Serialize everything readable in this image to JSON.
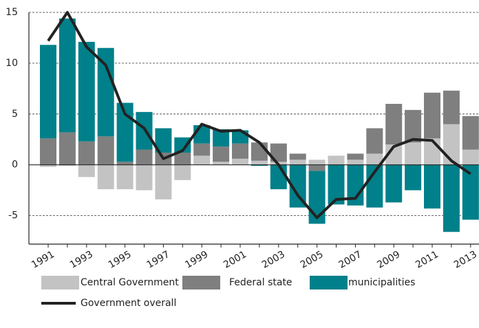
{
  "chart_data": {
    "type": "stacked-bar-line",
    "categories": [
      "1991",
      null,
      "1993",
      null,
      "1995",
      null,
      "1997",
      null,
      "1999",
      null,
      "2001",
      null,
      "2003",
      null,
      "2005",
      null,
      "2007",
      null,
      "2009",
      null,
      "2011",
      null,
      "2013"
    ],
    "series": [
      {
        "name": "Central Government",
        "type": "bar",
        "color": "#c3c3c3",
        "values": [
          -0.2,
          -0.1,
          -1.2,
          -2.4,
          -2.4,
          -2.5,
          -3.4,
          -1.5,
          0.9,
          0.3,
          0.6,
          0.4,
          0.3,
          0.5,
          0.5,
          0.9,
          0.5,
          1.1,
          2.0,
          2.2,
          2.6,
          4.0,
          1.5
        ]
      },
      {
        "name": "Federal state",
        "type": "bar",
        "color": "#7f7f7f",
        "values": [
          2.6,
          3.2,
          2.3,
          2.8,
          0.3,
          1.5,
          1.2,
          1.2,
          1.2,
          1.5,
          1.5,
          1.8,
          1.8,
          0.6,
          -0.6,
          0,
          0.6,
          2.5,
          4.0,
          3.2,
          4.5,
          3.3,
          3.3
        ]
      },
      {
        "name": "municipalities",
        "type": "bar",
        "color": "#00808a",
        "values": [
          9.2,
          11.2,
          9.8,
          8.7,
          5.8,
          3.7,
          2.4,
          1.5,
          1.8,
          1.7,
          1.3,
          -0.1,
          -2.4,
          -4.2,
          -5.2,
          -3.9,
          -4.0,
          -4.2,
          -3.7,
          -2.5,
          -4.3,
          -6.6,
          -5.4
        ]
      },
      {
        "name": "Government overall",
        "type": "line",
        "color": "#222222",
        "values": [
          12.2,
          15.0,
          11.6,
          9.8,
          5.0,
          3.6,
          0.6,
          1.4,
          4.0,
          3.3,
          3.4,
          2.2,
          0.0,
          -3.0,
          -5.2,
          -3.4,
          -3.3,
          -0.7,
          1.8,
          2.5,
          2.4,
          0.4,
          -0.9
        ]
      }
    ],
    "ylim": [
      -7.8,
      15
    ],
    "yticks": [
      -5,
      0,
      5,
      10,
      15
    ],
    "grid": true
  }
}
